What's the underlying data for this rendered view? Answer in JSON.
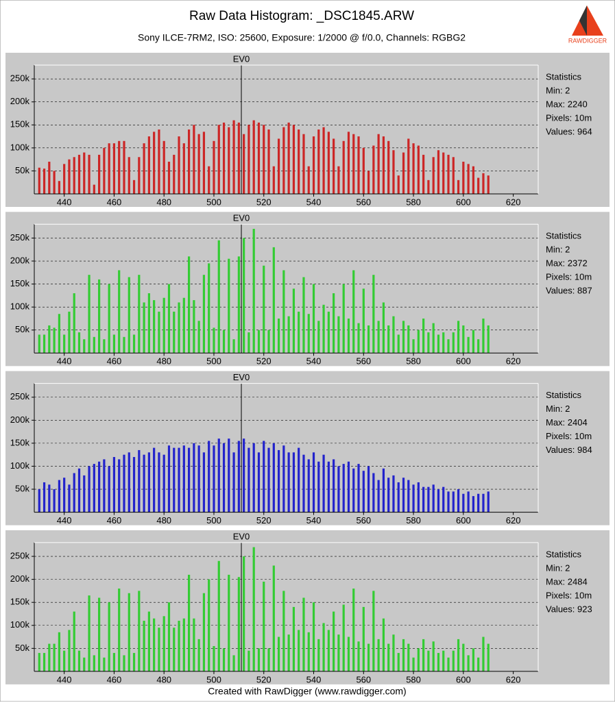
{
  "title": "Raw Data Histogram:  _DSC1845.ARW",
  "subtitle": "Sony ILCE-7RM2, ISO: 25600, Exposure: 1/2000 @ f/0.0, Channels: RGBG2",
  "footer": "Created with RawDigger (www.rawdigger.com)",
  "logo_text": "RAWDIGGER",
  "chart_data": [
    {
      "type": "bar",
      "color": "#cc2626",
      "x": [
        430,
        432,
        434,
        436,
        438,
        440,
        442,
        444,
        446,
        448,
        450,
        452,
        454,
        456,
        458,
        460,
        462,
        464,
        466,
        468,
        470,
        472,
        474,
        476,
        478,
        480,
        482,
        484,
        486,
        488,
        490,
        492,
        494,
        496,
        498,
        500,
        502,
        504,
        506,
        508,
        510,
        512,
        514,
        516,
        518,
        520,
        522,
        524,
        526,
        528,
        530,
        532,
        534,
        536,
        538,
        540,
        542,
        544,
        546,
        548,
        550,
        552,
        554,
        556,
        558,
        560,
        562,
        564,
        566,
        568,
        570,
        572,
        574,
        576,
        578,
        580,
        582,
        584,
        586,
        588,
        590,
        592,
        594,
        596,
        598,
        600,
        602,
        604,
        606,
        608,
        610
      ],
      "values": [
        57000,
        55000,
        70000,
        50000,
        28000,
        65000,
        75000,
        80000,
        85000,
        90000,
        85000,
        20000,
        85000,
        100000,
        110000,
        110000,
        115000,
        115000,
        80000,
        30000,
        80000,
        110000,
        125000,
        135000,
        140000,
        115000,
        70000,
        85000,
        125000,
        110000,
        140000,
        150000,
        130000,
        135000,
        60000,
        115000,
        150000,
        155000,
        145000,
        160000,
        155000,
        130000,
        150000,
        160000,
        155000,
        150000,
        140000,
        60000,
        120000,
        145000,
        155000,
        150000,
        140000,
        130000,
        60000,
        125000,
        140000,
        145000,
        135000,
        120000,
        60000,
        115000,
        135000,
        130000,
        125000,
        100000,
        50000,
        105000,
        130000,
        125000,
        115000,
        95000,
        40000,
        90000,
        120000,
        110000,
        105000,
        85000,
        30000,
        80000,
        95000,
        90000,
        85000,
        80000,
        30000,
        70000,
        65000,
        60000,
        35000,
        45000,
        40000
      ],
      "xlim": [
        428,
        630
      ],
      "xticks": [
        440,
        460,
        480,
        500,
        520,
        540,
        560,
        580,
        600,
        620
      ],
      "ylim": [
        0,
        280000
      ],
      "yticks": [
        {
          "value": 50000,
          "label": "50k"
        },
        {
          "value": 100000,
          "label": "100k"
        },
        {
          "value": 150000,
          "label": "150k"
        },
        {
          "value": 200000,
          "label": "200k"
        },
        {
          "value": 250000,
          "label": "250k"
        }
      ],
      "grid": true,
      "annotation": {
        "label": "EV0",
        "x": 511
      },
      "stats": [
        "Statistics",
        "Min: 2",
        "Max: 2240",
        "Pixels: 10m",
        "Values: 964"
      ]
    },
    {
      "type": "bar",
      "color": "#33cc33",
      "x": [
        430,
        432,
        434,
        436,
        438,
        440,
        442,
        444,
        446,
        448,
        450,
        452,
        454,
        456,
        458,
        460,
        462,
        464,
        466,
        468,
        470,
        472,
        474,
        476,
        478,
        480,
        482,
        484,
        486,
        488,
        490,
        492,
        494,
        496,
        498,
        500,
        502,
        504,
        506,
        508,
        510,
        512,
        514,
        516,
        518,
        520,
        522,
        524,
        526,
        528,
        530,
        532,
        534,
        536,
        538,
        540,
        542,
        544,
        546,
        548,
        550,
        552,
        554,
        556,
        558,
        560,
        562,
        564,
        566,
        568,
        570,
        572,
        574,
        576,
        578,
        580,
        582,
        584,
        586,
        588,
        590,
        592,
        594,
        596,
        598,
        600,
        602,
        604,
        606,
        608,
        610
      ],
      "values": [
        40000,
        40000,
        60000,
        55000,
        85000,
        40000,
        90000,
        130000,
        45000,
        30000,
        170000,
        35000,
        160000,
        30000,
        150000,
        40000,
        180000,
        35000,
        165000,
        40000,
        170000,
        110000,
        130000,
        115000,
        90000,
        120000,
        150000,
        90000,
        110000,
        120000,
        210000,
        115000,
        70000,
        170000,
        195000,
        55000,
        245000,
        50000,
        205000,
        30000,
        210000,
        250000,
        45000,
        270000,
        50000,
        190000,
        50000,
        230000,
        75000,
        180000,
        80000,
        140000,
        90000,
        165000,
        85000,
        150000,
        70000,
        105000,
        90000,
        130000,
        80000,
        150000,
        75000,
        180000,
        65000,
        140000,
        60000,
        170000,
        70000,
        110000,
        60000,
        80000,
        40000,
        70000,
        60000,
        30000,
        50000,
        75000,
        45000,
        65000,
        40000,
        45000,
        30000,
        45000,
        70000,
        60000,
        35000,
        50000,
        30000,
        75000,
        60000
      ],
      "xlim": [
        428,
        630
      ],
      "xticks": [
        440,
        460,
        480,
        500,
        520,
        540,
        560,
        580,
        600,
        620
      ],
      "ylim": [
        0,
        280000
      ],
      "yticks": [
        {
          "value": 50000,
          "label": "50k"
        },
        {
          "value": 100000,
          "label": "100k"
        },
        {
          "value": 150000,
          "label": "150k"
        },
        {
          "value": 200000,
          "label": "200k"
        },
        {
          "value": 250000,
          "label": "250k"
        }
      ],
      "grid": true,
      "annotation": {
        "label": "EV0",
        "x": 511
      },
      "stats": [
        "Statistics",
        "Min: 2",
        "Max: 2372",
        "Pixels: 10m",
        "Values: 887"
      ]
    },
    {
      "type": "bar",
      "color": "#2323cc",
      "x": [
        430,
        432,
        434,
        436,
        438,
        440,
        442,
        444,
        446,
        448,
        450,
        452,
        454,
        456,
        458,
        460,
        462,
        464,
        466,
        468,
        470,
        472,
        474,
        476,
        478,
        480,
        482,
        484,
        486,
        488,
        490,
        492,
        494,
        496,
        498,
        500,
        502,
        504,
        506,
        508,
        510,
        512,
        514,
        516,
        518,
        520,
        522,
        524,
        526,
        528,
        530,
        532,
        534,
        536,
        538,
        540,
        542,
        544,
        546,
        548,
        550,
        552,
        554,
        556,
        558,
        560,
        562,
        564,
        566,
        568,
        570,
        572,
        574,
        576,
        578,
        580,
        582,
        584,
        586,
        588,
        590,
        592,
        594,
        596,
        598,
        600,
        602,
        604,
        606,
        608,
        610
      ],
      "values": [
        50000,
        65000,
        60000,
        50000,
        70000,
        75000,
        60000,
        85000,
        95000,
        80000,
        100000,
        105000,
        110000,
        115000,
        100000,
        120000,
        115000,
        125000,
        130000,
        120000,
        135000,
        125000,
        130000,
        140000,
        130000,
        125000,
        145000,
        140000,
        140000,
        145000,
        140000,
        150000,
        145000,
        130000,
        155000,
        145000,
        160000,
        150000,
        160000,
        130000,
        155000,
        160000,
        140000,
        150000,
        130000,
        155000,
        140000,
        150000,
        135000,
        145000,
        130000,
        130000,
        140000,
        125000,
        115000,
        130000,
        110000,
        125000,
        110000,
        115000,
        100000,
        105000,
        110000,
        95000,
        105000,
        90000,
        100000,
        85000,
        70000,
        95000,
        75000,
        80000,
        65000,
        75000,
        70000,
        60000,
        65000,
        55000,
        55000,
        60000,
        50000,
        55000,
        45000,
        45000,
        50000,
        40000,
        45000,
        35000,
        40000,
        40000,
        45000
      ],
      "xlim": [
        428,
        630
      ],
      "xticks": [
        440,
        460,
        480,
        500,
        520,
        540,
        560,
        580,
        600,
        620
      ],
      "ylim": [
        0,
        280000
      ],
      "yticks": [
        {
          "value": 50000,
          "label": "50k"
        },
        {
          "value": 100000,
          "label": "100k"
        },
        {
          "value": 150000,
          "label": "150k"
        },
        {
          "value": 200000,
          "label": "200k"
        },
        {
          "value": 250000,
          "label": "250k"
        }
      ],
      "grid": true,
      "annotation": {
        "label": "EV0",
        "x": 511
      },
      "stats": [
        "Statistics",
        "Min: 2",
        "Max: 2404",
        "Pixels: 10m",
        "Values: 984"
      ]
    },
    {
      "type": "bar",
      "color": "#33cc33",
      "x": [
        430,
        432,
        434,
        436,
        438,
        440,
        442,
        444,
        446,
        448,
        450,
        452,
        454,
        456,
        458,
        460,
        462,
        464,
        466,
        468,
        470,
        472,
        474,
        476,
        478,
        480,
        482,
        484,
        486,
        488,
        490,
        492,
        494,
        496,
        498,
        500,
        502,
        504,
        506,
        508,
        510,
        512,
        514,
        516,
        518,
        520,
        522,
        524,
        526,
        528,
        530,
        532,
        534,
        536,
        538,
        540,
        542,
        544,
        546,
        548,
        550,
        552,
        554,
        556,
        558,
        560,
        562,
        564,
        566,
        568,
        570,
        572,
        574,
        576,
        578,
        580,
        582,
        584,
        586,
        588,
        590,
        592,
        594,
        596,
        598,
        600,
        602,
        604,
        606,
        608,
        610
      ],
      "values": [
        40000,
        40000,
        60000,
        60000,
        85000,
        45000,
        90000,
        130000,
        45000,
        30000,
        165000,
        35000,
        160000,
        30000,
        150000,
        40000,
        180000,
        35000,
        170000,
        40000,
        175000,
        110000,
        130000,
        115000,
        95000,
        120000,
        150000,
        95000,
        110000,
        115000,
        210000,
        115000,
        70000,
        170000,
        200000,
        55000,
        240000,
        50000,
        210000,
        35000,
        205000,
        250000,
        45000,
        270000,
        50000,
        195000,
        50000,
        230000,
        75000,
        175000,
        80000,
        140000,
        90000,
        160000,
        85000,
        150000,
        70000,
        105000,
        90000,
        130000,
        80000,
        145000,
        75000,
        180000,
        65000,
        140000,
        60000,
        175000,
        70000,
        115000,
        60000,
        80000,
        40000,
        70000,
        60000,
        30000,
        50000,
        70000,
        45000,
        65000,
        40000,
        45000,
        30000,
        45000,
        70000,
        60000,
        35000,
        50000,
        30000,
        75000,
        60000
      ],
      "xlim": [
        428,
        630
      ],
      "xticks": [
        440,
        460,
        480,
        500,
        520,
        540,
        560,
        580,
        600,
        620
      ],
      "ylim": [
        0,
        280000
      ],
      "yticks": [
        {
          "value": 50000,
          "label": "50k"
        },
        {
          "value": 100000,
          "label": "100k"
        },
        {
          "value": 150000,
          "label": "150k"
        },
        {
          "value": 200000,
          "label": "200k"
        },
        {
          "value": 250000,
          "label": "250k"
        }
      ],
      "grid": true,
      "annotation": {
        "label": "EV0",
        "x": 511
      },
      "stats": [
        "Statistics",
        "Min: 2",
        "Max: 2484",
        "Pixels: 10m",
        "Values: 923"
      ]
    }
  ]
}
